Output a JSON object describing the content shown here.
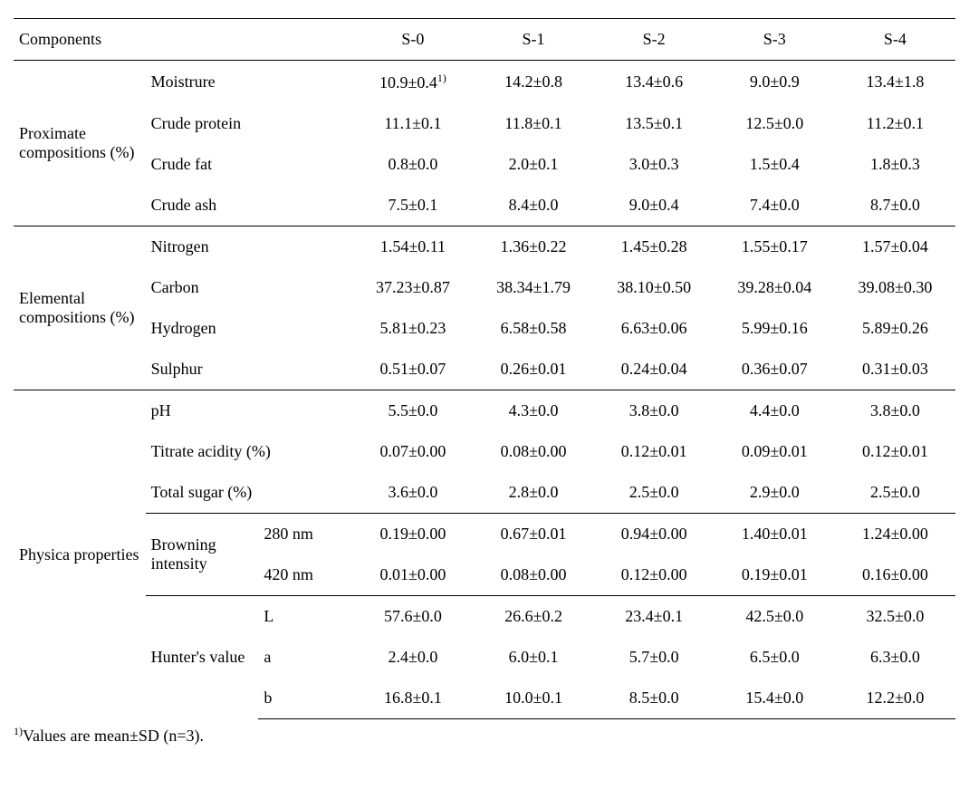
{
  "header": {
    "components": "Components",
    "cols": [
      "S-0",
      "S-1",
      "S-2",
      "S-3",
      "S-4"
    ]
  },
  "groups": {
    "proximate": {
      "title": "Proximate compositions (%)",
      "rows": [
        {
          "label": "Moistrure",
          "vals": [
            "10.9±0.4",
            "14.2±0.8",
            "13.4±0.6",
            "9.0±0.9",
            "13.4±1.8"
          ],
          "sup": "1)"
        },
        {
          "label": "Crude protein",
          "vals": [
            "11.1±0.1",
            "11.8±0.1",
            "13.5±0.1",
            "12.5±0.0",
            "11.2±0.1"
          ]
        },
        {
          "label": "Crude fat",
          "vals": [
            "0.8±0.0",
            "2.0±0.1",
            "3.0±0.3",
            "1.5±0.4",
            "1.8±0.3"
          ]
        },
        {
          "label": "Crude ash",
          "vals": [
            "7.5±0.1",
            "8.4±0.0",
            "9.0±0.4",
            "7.4±0.0",
            "8.7±0.0"
          ]
        }
      ]
    },
    "elemental": {
      "title": "Elemental compositions (%)",
      "rows": [
        {
          "label": "Nitrogen",
          "vals": [
            "1.54±0.11",
            "1.36±0.22",
            "1.45±0.28",
            "1.55±0.17",
            "1.57±0.04"
          ]
        },
        {
          "label": "Carbon",
          "vals": [
            "37.23±0.87",
            "38.34±1.79",
            "38.10±0.50",
            "39.28±0.04",
            "39.08±0.30"
          ]
        },
        {
          "label": "Hydrogen",
          "vals": [
            "5.81±0.23",
            "6.58±0.58",
            "6.63±0.06",
            "5.99±0.16",
            "5.89±0.26"
          ]
        },
        {
          "label": "Sulphur",
          "vals": [
            "0.51±0.07",
            "0.26±0.01",
            "0.24±0.04",
            "0.36±0.07",
            "0.31±0.03"
          ]
        }
      ]
    },
    "physica": {
      "title": "Physica properties",
      "simple": [
        {
          "label": "pH",
          "vals": [
            "5.5±0.0",
            "4.3±0.0",
            "3.8±0.0",
            "4.4±0.0",
            "3.8±0.0"
          ]
        },
        {
          "label": "Titrate acidity (%)",
          "vals": [
            "0.07±0.00",
            "0.08±0.00",
            "0.12±0.01",
            "0.09±0.01",
            "0.12±0.01"
          ]
        },
        {
          "label": "Total sugar (%)",
          "vals": [
            "3.6±0.0",
            "2.8±0.0",
            "2.5±0.0",
            "2.9±0.0",
            "2.5±0.0"
          ]
        }
      ],
      "browning": {
        "title": "Browning intensity",
        "rows": [
          {
            "sub": "280 nm",
            "vals": [
              "0.19±0.00",
              "0.67±0.01",
              "0.94±0.00",
              "1.40±0.01",
              "1.24±0.00"
            ]
          },
          {
            "sub": "420 nm",
            "vals": [
              "0.01±0.00",
              "0.08±0.00",
              "0.12±0.00",
              "0.19±0.01",
              "0.16±0.00"
            ]
          }
        ]
      },
      "hunter": {
        "title": "Hunter's value",
        "rows": [
          {
            "sub": "L",
            "vals": [
              "57.6±0.0",
              "26.6±0.2",
              "23.4±0.1",
              "42.5±0.0",
              "32.5±0.0"
            ]
          },
          {
            "sub": "a",
            "vals": [
              "2.4±0.0",
              "6.0±0.1",
              "5.7±0.0",
              "6.5±0.0",
              "6.3±0.0"
            ]
          },
          {
            "sub": "b",
            "vals": [
              "16.8±0.1",
              "10.0±0.1",
              "8.5±0.0",
              "15.4±0.0",
              "12.2±0.0"
            ]
          }
        ]
      }
    }
  },
  "footnote": {
    "sup": "1)",
    "text": "Values are mean±SD (n=3)."
  }
}
